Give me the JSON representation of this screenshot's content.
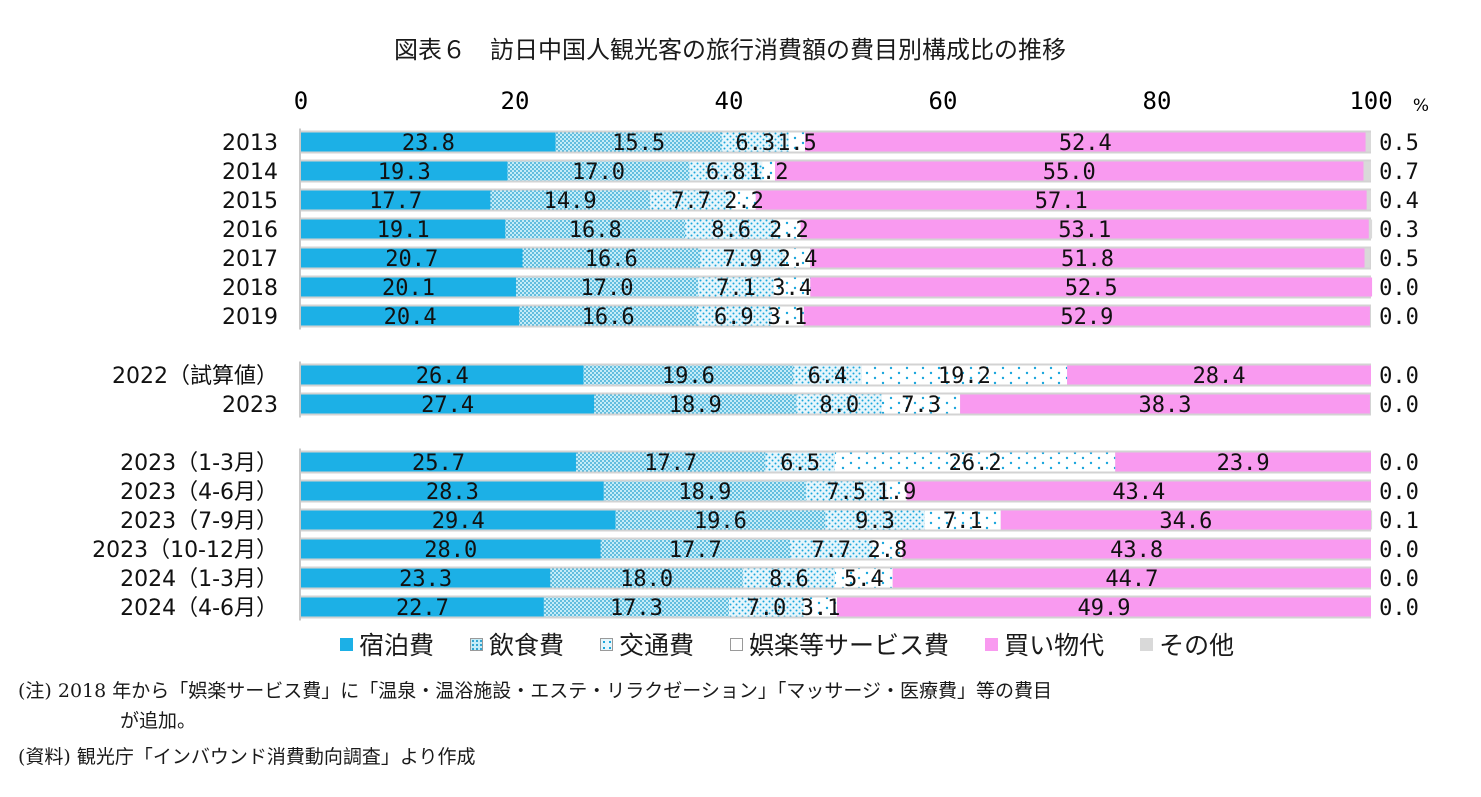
{
  "chart_data": {
    "type": "bar",
    "orientation": "horizontal-stacked-100",
    "title": "図表６　訪日中国人観光客の旅行消費額の費目別構成比の推移",
    "x_ticks": [
      "0",
      "20",
      "40",
      "60",
      "80",
      "100"
    ],
    "x_unit": "%",
    "xlim": [
      0,
      100
    ],
    "categories": [
      "2013",
      "2014",
      "2015",
      "2016",
      "2017",
      "2018",
      "2019",
      "2022（試算値）",
      "2023",
      "2023（1-3月）",
      "2023（4-6月）",
      "2023（7-9月）",
      "2023（10-12月）",
      "2024（1-3月）",
      "2024（4-6月）"
    ],
    "groups": [
      [
        0,
        1,
        2,
        3,
        4,
        5,
        6
      ],
      [
        7,
        8
      ],
      [
        9,
        10,
        11,
        12,
        13,
        14
      ]
    ],
    "series": [
      {
        "name": "宿泊費",
        "color": "#1cb0e6",
        "values": [
          23.8,
          19.3,
          17.7,
          19.1,
          20.7,
          20.1,
          20.4,
          26.4,
          27.4,
          25.7,
          28.3,
          29.4,
          28.0,
          23.3,
          22.7
        ],
        "labels": [
          "23.8",
          "19.3",
          "17.7",
          "19.1",
          "20.7",
          "20.1",
          "20.4",
          "26.4",
          "27.4",
          "25.7",
          "28.3",
          "29.4",
          "28.0",
          "23.3",
          "22.7"
        ]
      },
      {
        "name": "飲食費",
        "color": "#8fd6ee",
        "pattern": "dense-dots",
        "values": [
          15.5,
          17.0,
          14.9,
          16.8,
          16.6,
          17.0,
          16.6,
          19.6,
          18.9,
          17.7,
          18.9,
          19.6,
          17.7,
          18.0,
          17.3
        ],
        "labels": [
          "15.5",
          "17.0",
          "14.9",
          "16.8",
          "16.6",
          "17.0",
          "16.6",
          "19.6",
          "18.9",
          "17.7",
          "18.9",
          "19.6",
          "17.7",
          "18.0",
          "17.3"
        ]
      },
      {
        "name": "交通費",
        "color": "#bfe6f3",
        "pattern": "dots",
        "values": [
          6.3,
          6.8,
          7.7,
          8.6,
          7.9,
          7.1,
          6.9,
          6.4,
          8.0,
          6.5,
          7.5,
          9.3,
          7.7,
          8.6,
          7.0
        ],
        "labels": [
          "6.3",
          "6.8",
          "7.7",
          "8.6",
          "7.9",
          "7.1",
          "6.9",
          "6.4",
          "8.0",
          "6.5",
          "7.5",
          "9.3",
          "7.7",
          "8.6",
          "7.0"
        ]
      },
      {
        "name": "娯楽等サービス費",
        "color": "#ffffff",
        "pattern": "sparse-dots",
        "values": [
          1.5,
          1.2,
          2.2,
          2.2,
          2.4,
          3.4,
          3.1,
          19.2,
          7.3,
          26.2,
          1.9,
          7.1,
          2.8,
          5.4,
          3.1
        ],
        "labels": [
          "1.5",
          "1.2",
          "2.2",
          "2.2",
          "2.4",
          "3.4",
          "3.1",
          "19.2",
          "7.3",
          "26.2",
          "1.9",
          "7.1",
          "2.8",
          "5.4",
          "3.1"
        ]
      },
      {
        "name": "買い物代",
        "color": "#f99af0",
        "values": [
          52.4,
          55.0,
          57.1,
          53.1,
          51.8,
          52.5,
          52.9,
          28.4,
          38.3,
          23.9,
          43.4,
          34.6,
          43.8,
          44.7,
          49.9
        ],
        "labels": [
          "52.4",
          "55.0",
          "57.1",
          "53.1",
          "51.8",
          "52.5",
          "52.9",
          "28.4",
          "38.3",
          "23.9",
          "43.4",
          "34.6",
          "43.8",
          "44.7",
          "49.9"
        ]
      },
      {
        "name": "その他",
        "color": "#d9d9d9",
        "values": [
          0.5,
          0.7,
          0.4,
          0.3,
          0.5,
          0.0,
          0.0,
          0.0,
          0.0,
          0.0,
          0.0,
          0.1,
          0.0,
          0.0,
          0.0
        ],
        "labels": [
          "0.5",
          "0.7",
          "0.4",
          "0.3",
          "0.5",
          "0.0",
          "0.0",
          "0.0",
          "0.0",
          "0.0",
          "0.0",
          "0.1",
          "0.0",
          "0.0",
          "0.0"
        ]
      }
    ],
    "legend_position": "bottom",
    "grid": false
  },
  "notes": {
    "note_line1": "(注) 2018 年から「娯楽サービス費」に「温泉・温浴施設・エステ・リラクゼーション」「マッサージ・医療費」等の費目",
    "note_line2": "が追加。",
    "source": "(資料) 観光庁「インバウンド消費動向調査」より作成"
  }
}
